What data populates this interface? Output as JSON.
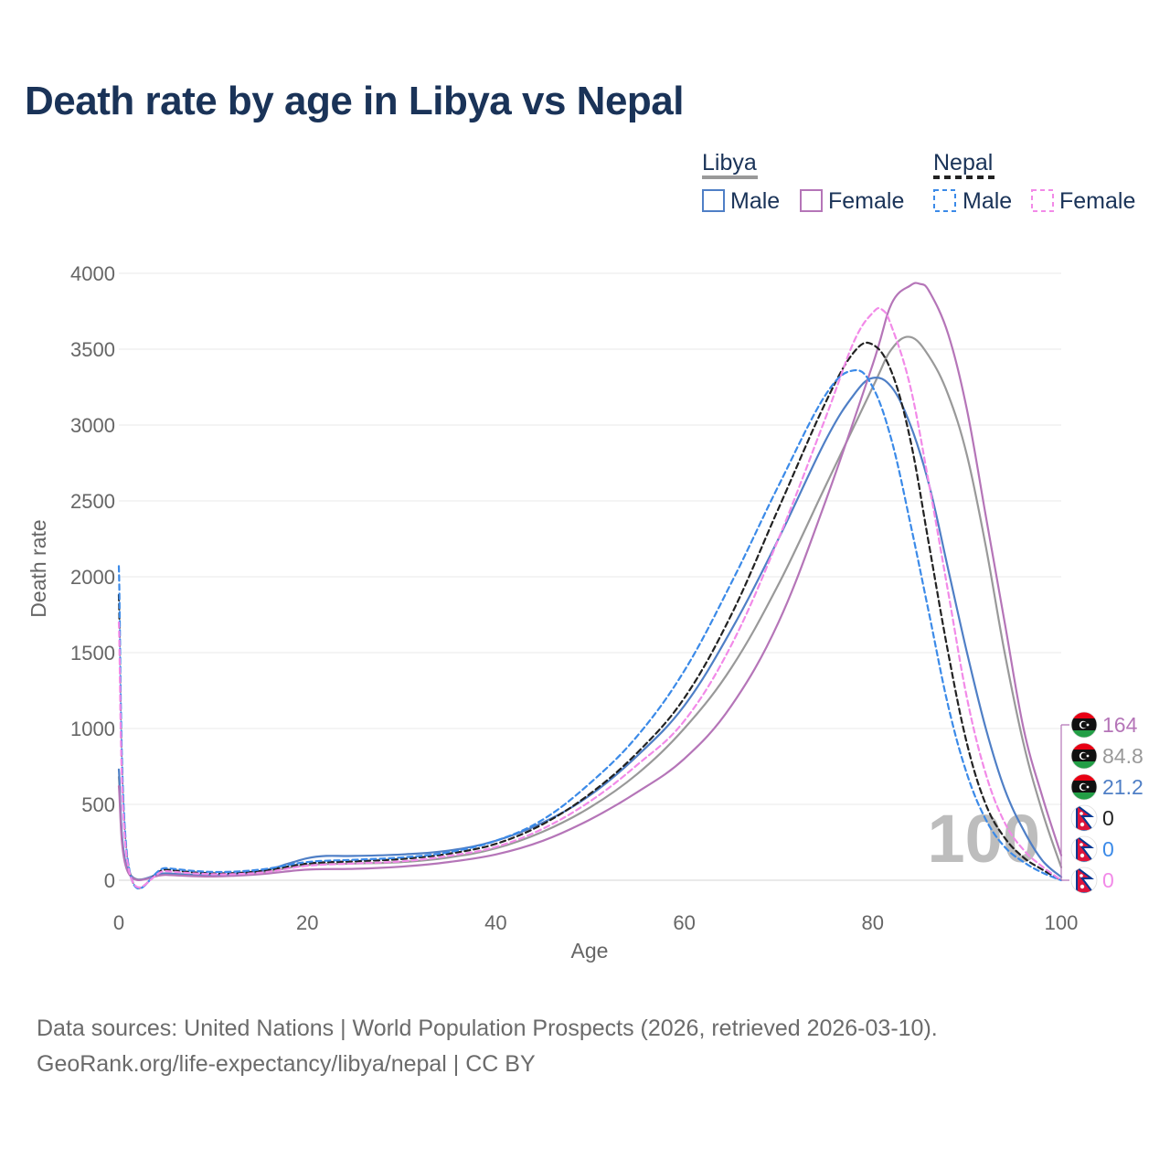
{
  "title": "Death rate by age in Libya vs Nepal",
  "sources": {
    "line1": "Data sources: United Nations | World Population Prospects (2026, retrieved 2026-03-10).",
    "line2": "GeoRank.org/life-expectancy/libya/nepal | CC BY"
  },
  "legend": {
    "groups": [
      {
        "name": "Libya",
        "color": "#999999",
        "dash": false,
        "items": [
          {
            "label": "Male",
            "color": "#4f7fc6"
          },
          {
            "label": "Female",
            "color": "#b575b8"
          }
        ]
      },
      {
        "name": "Nepal",
        "color": "#222222",
        "dash": true,
        "items": [
          {
            "label": "Male",
            "color": "#3b8ae8"
          },
          {
            "label": "Female",
            "color": "#f28ae8"
          }
        ]
      }
    ]
  },
  "watermark": "100",
  "end_labels": [
    {
      "text": "164",
      "color": "#b575b8",
      "flag": "libya-flag-icon"
    },
    {
      "text": "84.8",
      "color": "#999999",
      "flag": "libya-flag-icon"
    },
    {
      "text": "21.2",
      "color": "#4f7fc6",
      "flag": "libya-flag-icon"
    },
    {
      "text": "0",
      "color": "#222222",
      "flag": "nepal-flag-icon"
    },
    {
      "text": "0",
      "color": "#3b8ae8",
      "flag": "nepal-flag-icon"
    },
    {
      "text": "0",
      "color": "#f28ae8",
      "flag": "nepal-flag-icon"
    }
  ],
  "chart_data": {
    "type": "line",
    "title": "Death rate by age in Libya vs Nepal",
    "xlabel": "Age",
    "ylabel": "Death rate",
    "xlim": [
      0,
      100
    ],
    "ylim": [
      0,
      4000
    ],
    "xticks": [
      0,
      20,
      40,
      60,
      80,
      100
    ],
    "yticks": [
      0,
      500,
      1000,
      1500,
      2000,
      2500,
      3000,
      3500,
      4000
    ],
    "grid": true,
    "series": [
      {
        "name": "Libya Total",
        "color": "#999999",
        "dash": false,
        "x": [
          0,
          1,
          5,
          10,
          15,
          20,
          25,
          30,
          35,
          40,
          45,
          50,
          55,
          60,
          65,
          70,
          75,
          80,
          82,
          84,
          86,
          88,
          90,
          92,
          94,
          96,
          98,
          100
        ],
        "y": [
          680,
          60,
          40,
          30,
          50,
          100,
          110,
          120,
          150,
          210,
          320,
          480,
          700,
          1000,
          1400,
          1950,
          2600,
          3250,
          3500,
          3580,
          3450,
          3200,
          2800,
          2200,
          1500,
          900,
          450,
          84.8
        ]
      },
      {
        "name": "Libya Male",
        "color": "#4f7fc6",
        "dash": false,
        "x": [
          0,
          1,
          5,
          10,
          15,
          18,
          20,
          22,
          25,
          30,
          35,
          40,
          45,
          50,
          55,
          60,
          65,
          70,
          75,
          78,
          80,
          82,
          84,
          86,
          88,
          90,
          92,
          94,
          96,
          98,
          100
        ],
        "y": [
          730,
          60,
          45,
          35,
          60,
          110,
          145,
          160,
          160,
          170,
          195,
          260,
          380,
          560,
          820,
          1150,
          1650,
          2250,
          2900,
          3200,
          3310,
          3250,
          3000,
          2600,
          2050,
          1500,
          1000,
          600,
          330,
          130,
          21.2
        ]
      },
      {
        "name": "Libya Female",
        "color": "#b575b8",
        "dash": false,
        "x": [
          0,
          1,
          5,
          10,
          15,
          20,
          25,
          30,
          35,
          40,
          45,
          50,
          55,
          60,
          65,
          70,
          75,
          80,
          82,
          84,
          85,
          86,
          88,
          90,
          92,
          94,
          96,
          98,
          100
        ],
        "y": [
          620,
          50,
          35,
          25,
          40,
          70,
          75,
          90,
          120,
          170,
          260,
          400,
          580,
          800,
          1150,
          1700,
          2500,
          3400,
          3800,
          3920,
          3930,
          3880,
          3600,
          3100,
          2400,
          1700,
          1000,
          550,
          164
        ]
      },
      {
        "name": "Nepal Total",
        "color": "#222222",
        "dash": true,
        "x": [
          0,
          1,
          5,
          10,
          15,
          20,
          25,
          30,
          35,
          40,
          45,
          50,
          55,
          60,
          65,
          70,
          75,
          78,
          80,
          82,
          84,
          86,
          88,
          90,
          92,
          94,
          96,
          98,
          100
        ],
        "y": [
          1880,
          100,
          70,
          45,
          60,
          110,
          125,
          140,
          175,
          240,
          370,
          570,
          840,
          1200,
          1750,
          2450,
          3150,
          3480,
          3530,
          3350,
          2900,
          2200,
          1500,
          900,
          500,
          280,
          150,
          70,
          0
        ]
      },
      {
        "name": "Nepal Male",
        "color": "#3b8ae8",
        "dash": true,
        "x": [
          0,
          1,
          5,
          10,
          15,
          20,
          25,
          30,
          35,
          40,
          45,
          50,
          55,
          60,
          65,
          70,
          75,
          78,
          80,
          82,
          84,
          86,
          88,
          90,
          92,
          94,
          96,
          98,
          100
        ],
        "y": [
          2070,
          110,
          80,
          55,
          70,
          120,
          135,
          150,
          185,
          260,
          400,
          640,
          950,
          1380,
          1960,
          2600,
          3200,
          3360,
          3250,
          2900,
          2350,
          1750,
          1150,
          700,
          400,
          220,
          120,
          50,
          0
        ]
      },
      {
        "name": "Nepal Female",
        "color": "#f28ae8",
        "dash": true,
        "x": [
          0,
          1,
          5,
          10,
          15,
          20,
          25,
          30,
          35,
          40,
          45,
          50,
          55,
          60,
          65,
          70,
          75,
          78,
          80,
          81,
          82,
          84,
          86,
          88,
          90,
          92,
          94,
          96,
          98,
          100
        ],
        "y": [
          1700,
          90,
          60,
          40,
          50,
          95,
          110,
          125,
          160,
          220,
          340,
          520,
          760,
          1050,
          1550,
          2250,
          3050,
          3550,
          3740,
          3760,
          3650,
          3250,
          2600,
          1900,
          1200,
          700,
          380,
          200,
          90,
          0
        ]
      }
    ]
  }
}
